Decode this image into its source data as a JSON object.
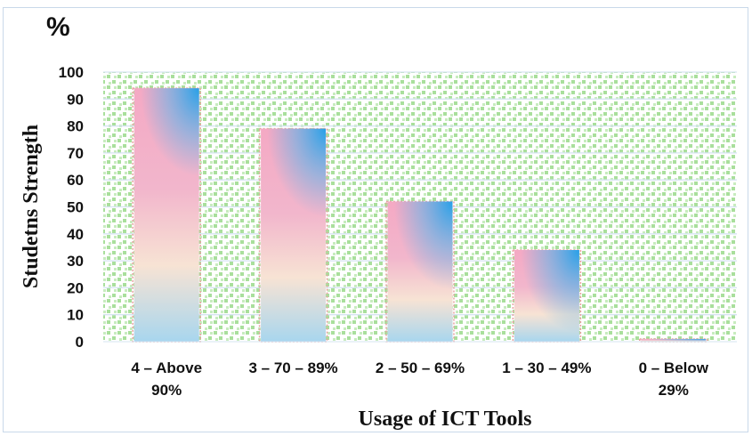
{
  "chart_data": {
    "type": "bar",
    "unit_mark": "%",
    "categories": [
      [
        "4 – Above",
        "90%"
      ],
      [
        "3 – 70 – 89%"
      ],
      [
        "2 – 50 – 69%"
      ],
      [
        "1 – 30 – 49%"
      ],
      [
        "0 – Below",
        "29%"
      ]
    ],
    "values": [
      94,
      79,
      52,
      34,
      1
    ],
    "xlabel": "Usage of ICT Tools",
    "ylabel": "Studetns Strength",
    "ylim": [
      0,
      100
    ],
    "yticks": [
      0,
      10,
      20,
      30,
      40,
      50,
      60,
      70,
      80,
      90,
      100
    ],
    "grid": true,
    "colors": {
      "plot_pattern_bg": "#ffffff",
      "plot_pattern_fg": "#a9df9c",
      "gridline": "#d6e4f2",
      "bar_top": "#3aa5e6",
      "bar_mid": "#f2b6cc",
      "bar_low": "#f7e3d4",
      "bar_base": "#a8d6ee",
      "bar_edge": "#e7a0a0"
    }
  }
}
